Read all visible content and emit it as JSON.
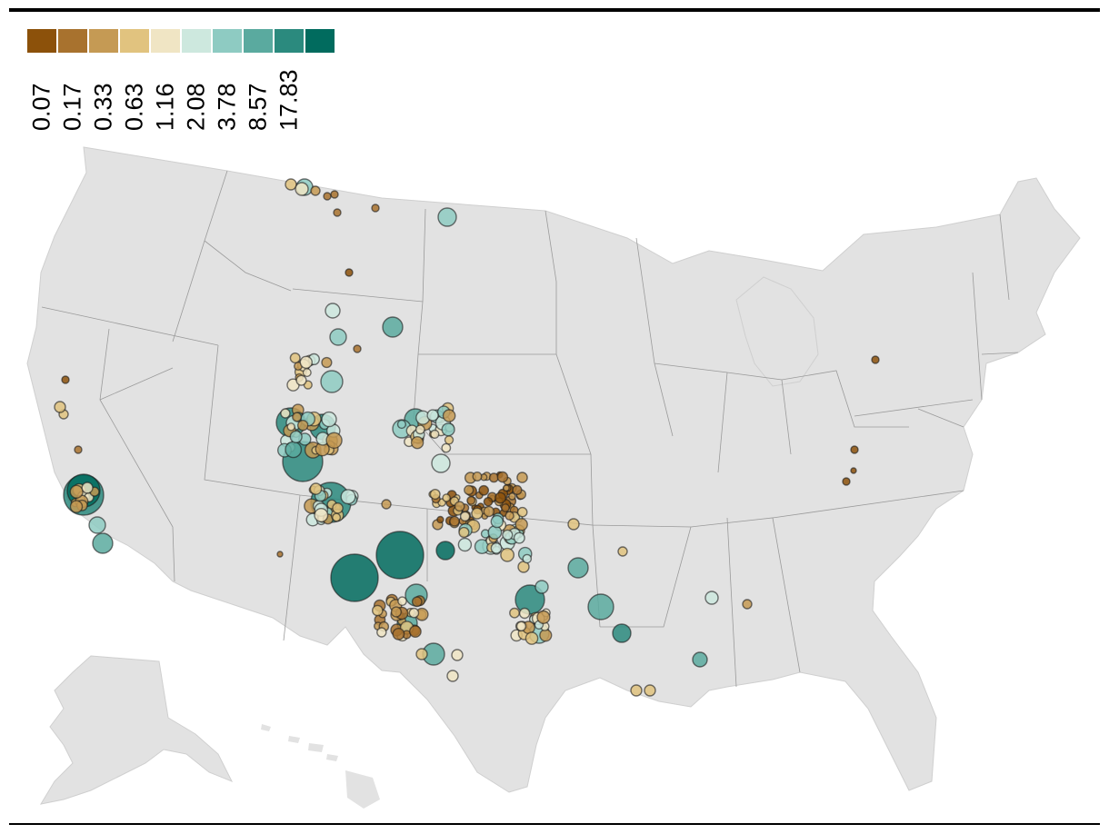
{
  "legend": {
    "colors": [
      "#8c510a",
      "#a8722e",
      "#c59a54",
      "#e1c37f",
      "#f0e5c4",
      "#cde8de",
      "#8ecbc2",
      "#5aaa9f",
      "#2b8a7e",
      "#016b5e"
    ],
    "labels": [
      "0.07",
      "0.17",
      "0.33",
      "0.63",
      "1.16",
      "2.08",
      "3.78",
      "8.57",
      "17.83"
    ]
  },
  "map": {
    "land_color": "#e2e2e2",
    "border_color": "#9a9a9a",
    "marker_outline": "#1a1a1a"
  }
}
